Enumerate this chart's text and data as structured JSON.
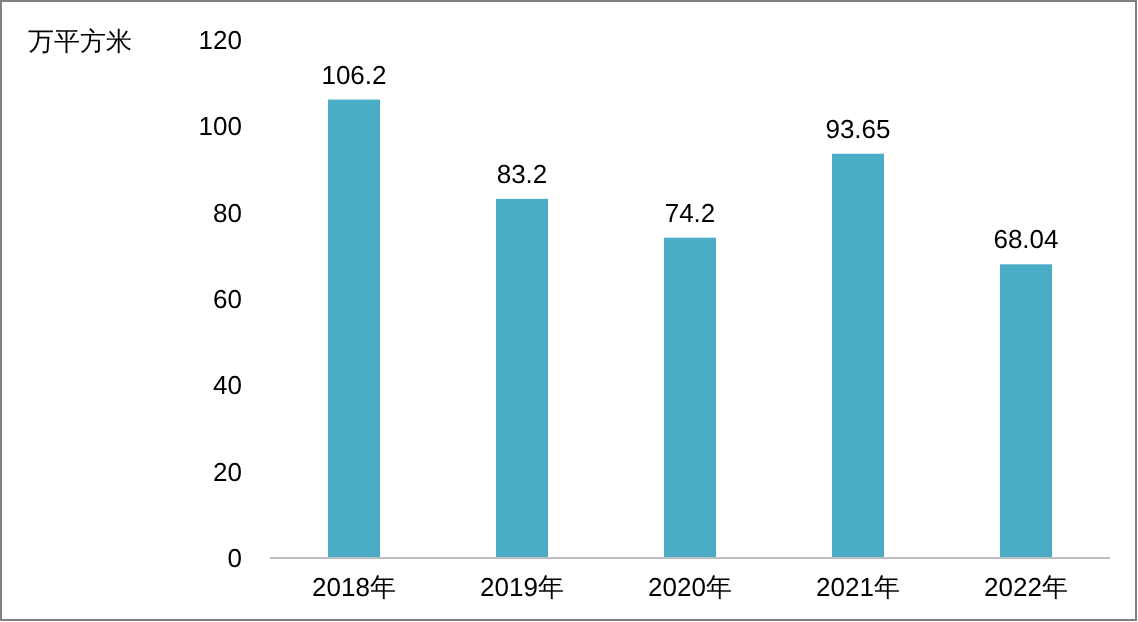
{
  "chart_data": {
    "type": "bar",
    "ylabel": "万平方米",
    "categories": [
      "2018年",
      "2019年",
      "2020年",
      "2021年",
      "2022年"
    ],
    "values": [
      106.2,
      83.2,
      74.2,
      93.65,
      68.04
    ],
    "color": "#4bacc6",
    "ylim": [
      0,
      120
    ],
    "yticks": [
      0,
      20,
      40,
      60,
      80,
      100,
      120
    ],
    "data_labels": true
  }
}
